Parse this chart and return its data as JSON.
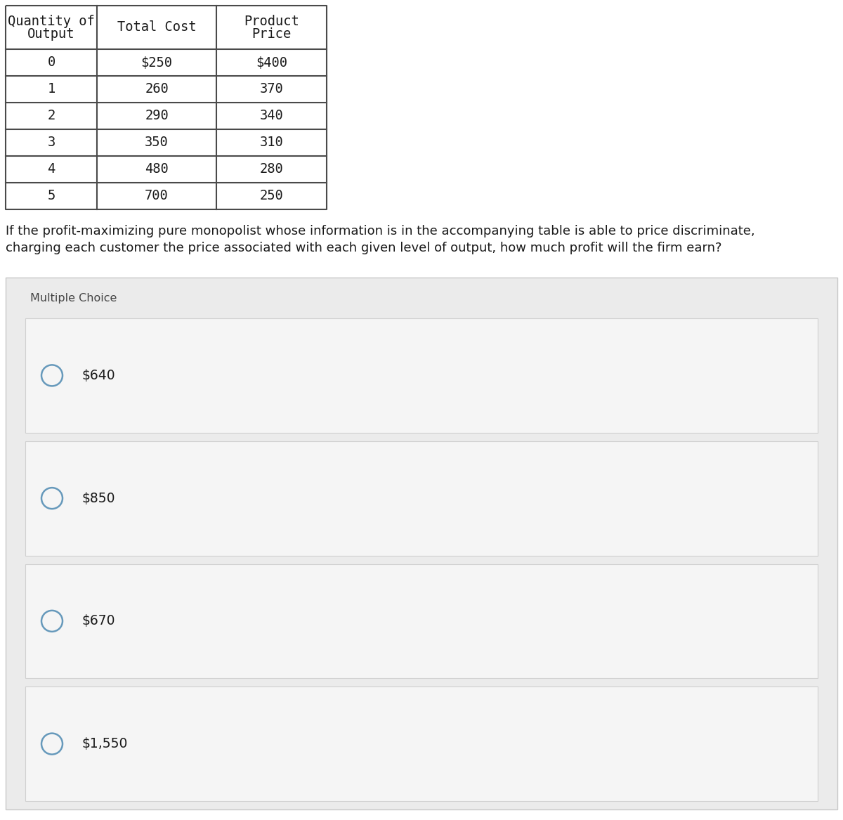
{
  "table_headers_col0_line1": "Quantity of",
  "table_headers_col0_line2": "Output",
  "table_header_col1": "Total Cost",
  "table_headers_col2_line1": "Product",
  "table_headers_col2_line2": "Price",
  "table_data": [
    [
      "0",
      "$250",
      "$400"
    ],
    [
      "1",
      "260",
      "370"
    ],
    [
      "2",
      "290",
      "340"
    ],
    [
      "3",
      "350",
      "310"
    ],
    [
      "4",
      "480",
      "280"
    ],
    [
      "5",
      "700",
      "250"
    ]
  ],
  "question_line1": "If the profit-maximizing pure monopolist whose information is in the accompanying table is able to price discriminate,",
  "question_line2": "charging each customer the price associated with each given level of output, how much profit will the firm earn?",
  "mc_label": "Multiple Choice",
  "choices": [
    "$640",
    "$850",
    "$670",
    "$1,550"
  ],
  "bg_color": "#ffffff",
  "table_border_color": "#4a4a4a",
  "mc_bg_color": "#ebebeb",
  "choice_bg_color": "#f5f5f5",
  "choice_border_color": "#d0d0d0",
  "mc_border_color": "#c8c8c8",
  "radio_color": "#6699bb",
  "text_color": "#1a1a1a",
  "mc_text_color": "#444444",
  "font_mono": "DejaVu Sans Mono",
  "font_sans": "DejaVu Sans"
}
